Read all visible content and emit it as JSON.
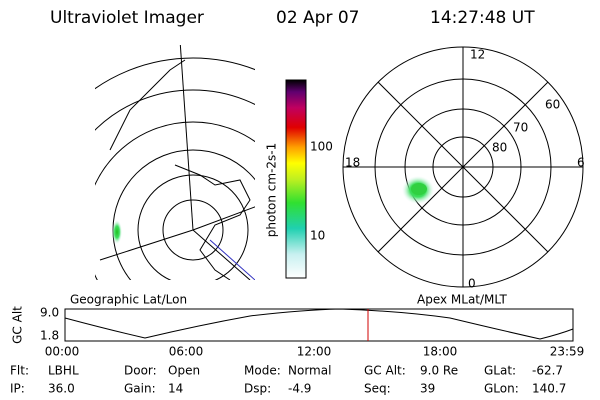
{
  "header": {
    "title": "Ultraviolet Imager",
    "date": "02 Apr 07",
    "time": "14:27:48 UT"
  },
  "colorbar": {
    "label": "photon cm-2s-1",
    "ticks": [
      "100",
      "10"
    ]
  },
  "polar": {
    "rings": [
      "60",
      "70",
      "80"
    ],
    "hours": {
      "top": "12",
      "right": "6",
      "left": "18",
      "bottom": "0"
    }
  },
  "panel_labels": {
    "left": "Geographic Lat/Lon",
    "right": "Apex MLat/MLT"
  },
  "timeline": {
    "axis_label": "GC Alt",
    "y_labels": [
      "9.0",
      "1.8"
    ],
    "x_labels": [
      "00:00",
      "06:00",
      "12:00",
      "18:00",
      "23:59"
    ]
  },
  "footer": [
    [
      {
        "label": "Flt:",
        "value": "LBHL"
      },
      {
        "label": "Door:",
        "value": "Open"
      },
      {
        "label": "Mode:",
        "value": "Normal"
      },
      {
        "label": "GC Alt:",
        "value": "9.0 Re"
      },
      {
        "label": "GLat:",
        "value": "-62.7"
      }
    ],
    [
      {
        "label": "IP:",
        "value": "36.0"
      },
      {
        "label": "Gain:",
        "value": "14"
      },
      {
        "label": "Dsp:",
        "value": "-4.9"
      },
      {
        "label": "Seq:",
        "value": "39"
      },
      {
        "label": "GLon:",
        "value": "140.7"
      }
    ]
  ]
}
